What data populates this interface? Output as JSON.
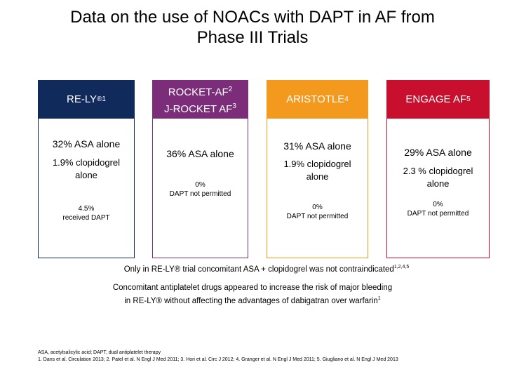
{
  "title_line1": "Data on the use of NOACs with DAPT in AF from",
  "title_line2": "Phase III Trials",
  "colors": {
    "col1": "#102a5c",
    "col2": "#7b2d79",
    "col3": "#f39a1e",
    "col4": "#c8102e"
  },
  "trials": [
    {
      "name": "RE-LY",
      "sup": "®1",
      "line_a": "32% ASA alone",
      "line_b1": "1.9% clopidogrel",
      "line_b2": "alone",
      "line_c1": "4.5%",
      "line_c2": "received DAPT"
    },
    {
      "name1": "ROCKET-AF",
      "sup1": "2",
      "name2": "J-ROCKET AF",
      "sup2": "3",
      "line_a": "36% ASA alone",
      "line_c1": "0%",
      "line_c2": "DAPT not permitted"
    },
    {
      "name": "ARISTOTLE",
      "sup": "4",
      "line_a": "31% ASA alone",
      "line_b1": "1.9% clopidogrel",
      "line_b2": "alone",
      "line_c1": "0%",
      "line_c2": "DAPT not permitted"
    },
    {
      "name": "ENGAGE AF",
      "sup": "5",
      "line_a": "29% ASA alone",
      "line_b1": "2.3 % clopidogrel",
      "line_b2": "alone",
      "line_c1": "0%",
      "line_c2": "DAPT not permitted"
    }
  ],
  "note1": "Only in RE-LY® trial concomitant ASA + clopidogrel was not contraindicated",
  "note1_sup": "1,2,4,5",
  "note2_line1": "Concomitant antiplatelet drugs appeared to increase the risk of major bleeding",
  "note2_line2": "in RE-LY® without affecting the advantages of dabigatran over warfarin",
  "note2_sup": "1",
  "footnote1": "ASA, acetylsalicylic acid; DAPT, dual antiplatelet therapy",
  "footnote2": "1. Dans et al. Circulation 2013; 2. Patel et al. N Engl J Med 2011; 3. Hori et al. Circ J 2012; 4. Granger et al. N Engl J Med 2011; 5. Giugliano et al. N Engl J Med 2013"
}
